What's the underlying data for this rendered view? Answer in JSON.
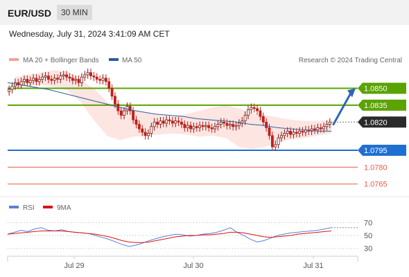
{
  "header": {
    "pair": "EUR/USD",
    "timeframe": "30 MIN"
  },
  "datetime": "Wednesday, July 31, 2024 3:41:09 AM CET",
  "legend": {
    "ma20": "MA 20 + Bollinger Bands",
    "ma50": "MA 50",
    "credit": "Research © 2024 Trading Central"
  },
  "rsi_legend": {
    "rsi": "RSI",
    "ma": "9MA"
  },
  "colors": {
    "resistance": "#5aa300",
    "support": "#1f6fd1",
    "minor": "#e8594a",
    "ma50": "#2d5a9b",
    "bollinger": "#fde0dd",
    "candle_up": "#7a1a15",
    "candle_down": "#c21f1a",
    "current": "#2b2b2b",
    "rsi": "#5b7fd6",
    "rsi_ma": "#d11"
  },
  "chart_data": [
    {
      "type": "candlestick",
      "title": "EUR/USD 30 MIN",
      "y_range": [
        1.0755,
        1.087
      ],
      "x_ticks": [
        "Jul 29",
        "Jul 30",
        "Jul 31"
      ],
      "levels": [
        {
          "value": 1.085,
          "label": "1.0850",
          "kind": "resistance"
        },
        {
          "value": 1.0835,
          "label": "1.0835",
          "kind": "resistance"
        },
        {
          "value": 1.082,
          "label": "1.0820",
          "kind": "current"
        },
        {
          "value": 1.0795,
          "label": "1.0795",
          "kind": "support"
        },
        {
          "value": 1.078,
          "label": "1.0780",
          "kind": "minor"
        },
        {
          "value": 1.0765,
          "label": "1.0765",
          "kind": "minor"
        }
      ],
      "close_series": [
        1.0849,
        1.0852,
        1.0855,
        1.0853,
        1.0856,
        1.0858,
        1.0855,
        1.0857,
        1.0859,
        1.0856,
        1.0858,
        1.086,
        1.0861,
        1.0858,
        1.0857,
        1.0859,
        1.0858,
        1.0861,
        1.0862,
        1.086,
        1.0859,
        1.0857,
        1.0858,
        1.0855,
        1.086,
        1.0862,
        1.0864,
        1.0861,
        1.086,
        1.0858,
        1.0857,
        1.0859,
        1.0856,
        1.085,
        1.0843,
        1.0836,
        1.083,
        1.0826,
        1.083,
        1.0834,
        1.083,
        1.0822,
        1.0818,
        1.0814,
        1.0811,
        1.0808,
        1.081,
        1.0816,
        1.082,
        1.0818,
        1.0821,
        1.0819,
        1.0822,
        1.0821,
        1.0819,
        1.0821,
        1.082,
        1.0818,
        1.0815,
        1.0817,
        1.0814,
        1.0816,
        1.0815,
        1.0817,
        1.0816,
        1.0817,
        1.0815,
        1.0814,
        1.0816,
        1.0818,
        1.082,
        1.0819,
        1.0817,
        1.0818,
        1.0816,
        1.0817,
        1.0819,
        1.0821,
        1.0826,
        1.0831,
        1.0833,
        1.0832,
        1.083,
        1.0825,
        1.082,
        1.0815,
        1.0808,
        1.0798,
        1.08,
        1.0806,
        1.0808,
        1.081,
        1.0812,
        1.0809,
        1.0811,
        1.081,
        1.0812,
        1.0811,
        1.0813,
        1.0812,
        1.0814,
        1.0813,
        1.0815,
        1.0814,
        1.0816,
        1.0818,
        1.082
      ],
      "ma50_series": [
        1.0855,
        1.0853,
        1.0851,
        1.0849,
        1.0846,
        1.0843,
        1.084,
        1.0837,
        1.0834,
        1.0831,
        1.0829,
        1.0827,
        1.0826,
        1.0825,
        1.0823,
        1.0822,
        1.0821,
        1.082,
        1.0818,
        1.0817,
        1.0815,
        1.0814,
        1.0813,
        1.0812,
        1.0812
      ],
      "bollinger_upper": [
        1.086,
        1.0862,
        1.0864,
        1.0866,
        1.0865,
        1.0858,
        1.085,
        1.0838,
        1.0832,
        1.083,
        1.0828,
        1.0826,
        1.0825,
        1.0827,
        1.083,
        1.0833,
        1.0835,
        1.0832,
        1.0828,
        1.0826,
        1.0824,
        1.0822,
        1.0821,
        1.0821,
        1.0822
      ],
      "bollinger_lower": [
        1.085,
        1.0852,
        1.0853,
        1.0851,
        1.0848,
        1.0838,
        1.0822,
        1.0808,
        1.0804,
        1.0807,
        1.0808,
        1.0809,
        1.081,
        1.0809,
        1.0807,
        1.0808,
        1.0806,
        1.0798,
        1.0796,
        1.0798,
        1.0802,
        1.0805,
        1.0806,
        1.0808,
        1.081
      ],
      "projection": {
        "from": 1.0818,
        "to": 1.085,
        "direction": "up"
      }
    },
    {
      "type": "line",
      "title": "RSI",
      "y_ticks": [
        70,
        50,
        30
      ],
      "y_range": [
        20,
        80
      ],
      "series": [
        {
          "name": "RSI",
          "values": [
            52,
            55,
            58,
            56,
            60,
            62,
            58,
            57,
            59,
            56,
            55,
            54,
            53,
            50,
            47,
            44,
            40,
            36,
            33,
            35,
            38,
            42,
            45,
            48,
            50,
            52,
            51,
            49,
            50,
            52,
            53,
            55,
            58,
            62,
            55,
            50,
            44,
            40,
            42,
            46,
            50,
            52,
            54,
            55,
            56,
            57,
            58,
            60,
            62
          ]
        },
        {
          "name": "9MA",
          "values": [
            52,
            53,
            54,
            55,
            56,
            57,
            57,
            57,
            57,
            56,
            55,
            54,
            53,
            52,
            50,
            48,
            45,
            42,
            40,
            39,
            39,
            40,
            42,
            44,
            46,
            48,
            49,
            50,
            50,
            51,
            51,
            52,
            53,
            55,
            55,
            54,
            52,
            50,
            48,
            47,
            48,
            49,
            50,
            52,
            53,
            54,
            55,
            56,
            57
          ]
        }
      ]
    }
  ]
}
